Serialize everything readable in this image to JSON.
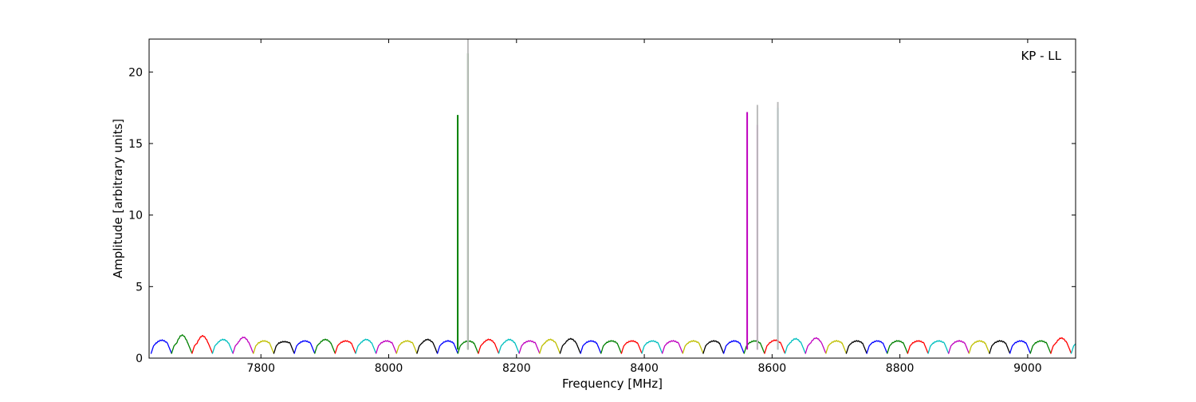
{
  "chart_data": {
    "type": "line",
    "title": "",
    "annotation": "KP - LL",
    "xlabel": "Frequency [MHz]",
    "ylabel": "Amplitude [arbitrary units]",
    "xlim": [
      7625,
      9075
    ],
    "ylim": [
      0,
      22.3
    ],
    "xticks": [
      7800,
      8000,
      8200,
      8400,
      8600,
      8800,
      9000
    ],
    "yticks": [
      0,
      5,
      10,
      15,
      20
    ],
    "grid": false,
    "legend": "none",
    "channel_width_mhz": 32,
    "channel_start_mhz": 7628,
    "color_cycle": [
      "#0000ff",
      "#008000",
      "#ff0000",
      "#00bfbf",
      "#bf00bf",
      "#bfbf00",
      "#000000"
    ],
    "channel_peaks": [
      1.25,
      1.6,
      1.55,
      1.3,
      1.45,
      1.2,
      1.15,
      1.2,
      1.3,
      1.2,
      1.3,
      1.2,
      1.2,
      1.3,
      1.2,
      1.2,
      1.3,
      1.3,
      1.2,
      1.3,
      1.35,
      1.2,
      1.2,
      1.2,
      1.2,
      1.2,
      1.2,
      1.2,
      1.2,
      1.2,
      1.25,
      1.35,
      1.4,
      1.2,
      1.2,
      1.2,
      1.2,
      1.2,
      1.2,
      1.2,
      1.2,
      1.2,
      1.2,
      1.2,
      1.4,
      1.55,
      1.6,
      1.3
    ],
    "spikes": [
      {
        "x": 8108,
        "y": 17.0,
        "color": "#008000"
      },
      {
        "x": 8124,
        "y": 21.3,
        "color": "#008000"
      },
      {
        "x": 8124,
        "y": 22.3,
        "color": "#bbbbbb"
      },
      {
        "x": 8561,
        "y": 17.2,
        "color": "#bf00bf"
      },
      {
        "x": 8577,
        "y": 16.3,
        "color": "#bf00bf"
      },
      {
        "x": 8577,
        "y": 17.7,
        "color": "#bbbbbb"
      },
      {
        "x": 8609,
        "y": 17.5,
        "color": "#00bfbf"
      },
      {
        "x": 8609,
        "y": 17.9,
        "color": "#bbbbbb"
      }
    ]
  }
}
